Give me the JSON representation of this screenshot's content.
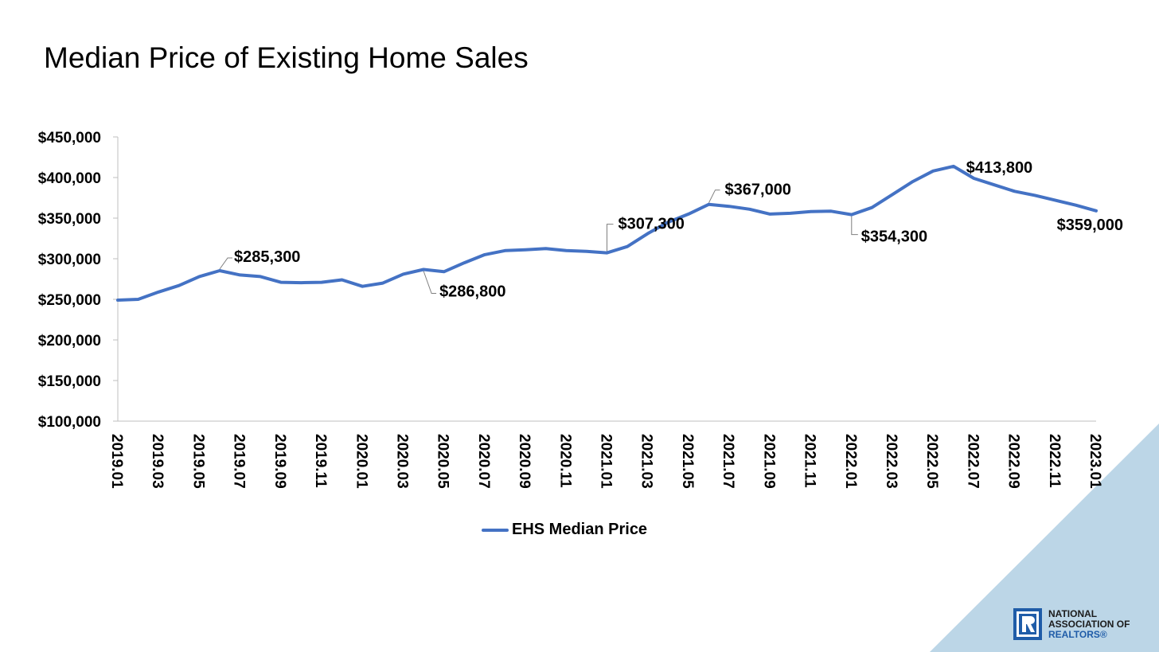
{
  "slide": {
    "title": "Median Price of Existing Home Sales",
    "colors": {
      "series": "#4472C4",
      "corner": "#BCD6E7",
      "axis": "#BFBFBF",
      "logo_blue": "#1F5CA8"
    },
    "logo": {
      "icon": "realtor-r-logo-icon",
      "line1": "NATIONAL",
      "line2": "ASSOCIATION OF",
      "line3": "REALTORS®"
    }
  },
  "chart_data": {
    "type": "line",
    "title": "Median Price of Existing Home Sales",
    "xlabel": "",
    "ylabel": "",
    "ylim": [
      100000,
      450000
    ],
    "yticks": [
      100000,
      150000,
      200000,
      250000,
      300000,
      350000,
      400000,
      450000
    ],
    "ytick_labels": [
      "$100,000",
      "$150,000",
      "$200,000",
      "$250,000",
      "$300,000",
      "$350,000",
      "$400,000",
      "$450,000"
    ],
    "categories": [
      "2019.01",
      "2019.02",
      "2019.03",
      "2019.04",
      "2019.05",
      "2019.06",
      "2019.07",
      "2019.08",
      "2019.09",
      "2019.10",
      "2019.11",
      "2019.12",
      "2020.01",
      "2020.02",
      "2020.03",
      "2020.04",
      "2020.05",
      "2020.06",
      "2020.07",
      "2020.08",
      "2020.09",
      "2020.10",
      "2020.11",
      "2020.12",
      "2021.01",
      "2021.02",
      "2021.03",
      "2021.04",
      "2021.05",
      "2021.06",
      "2021.07",
      "2021.08",
      "2021.09",
      "2021.10",
      "2021.11",
      "2021.12",
      "2022.01",
      "2022.02",
      "2022.03",
      "2022.04",
      "2022.05",
      "2022.06",
      "2022.07",
      "2022.08",
      "2022.09",
      "2022.10",
      "2022.11",
      "2022.12",
      "2023.01"
    ],
    "xtick_labels": [
      "2019.01",
      "2019.03",
      "2019.05",
      "2019.07",
      "2019.09",
      "2019.11",
      "2020.01",
      "2020.03",
      "2020.05",
      "2020.07",
      "2020.09",
      "2020.11",
      "2021.01",
      "2021.03",
      "2021.05",
      "2021.07",
      "2021.09",
      "2021.11",
      "2022.01",
      "2022.03",
      "2022.05",
      "2022.07",
      "2022.09",
      "2022.11",
      "2023.01"
    ],
    "series": [
      {
        "name": "EHS Median Price",
        "values": [
          249000,
          250000,
          259000,
          267000,
          278000,
          285300,
          280000,
          278000,
          271000,
          270500,
          271000,
          274000,
          266000,
          270000,
          281000,
          286800,
          284000,
          295000,
          305000,
          310000,
          311000,
          312500,
          310000,
          309000,
          307300,
          315000,
          331000,
          345000,
          355000,
          367000,
          364500,
          361000,
          355000,
          356000,
          358000,
          358500,
          354300,
          363000,
          379000,
          395000,
          408000,
          413800,
          399000,
          391000,
          383000,
          378000,
          372000,
          366000,
          359000
        ]
      }
    ],
    "annotations": [
      {
        "category": "2019.06",
        "value": 285300,
        "label": "$285,300"
      },
      {
        "category": "2020.04",
        "value": 286800,
        "label": "$286,800"
      },
      {
        "category": "2021.01",
        "value": 307300,
        "label": "$307,300"
      },
      {
        "category": "2021.06",
        "value": 367000,
        "label": "$367,000"
      },
      {
        "category": "2022.01",
        "value": 354300,
        "label": "$354,300"
      },
      {
        "category": "2022.06",
        "value": 413800,
        "label": "$413,800"
      },
      {
        "category": "2023.01",
        "value": 359000,
        "label": "$359,000"
      }
    ],
    "legend": {
      "position": "bottom",
      "entries": [
        "EHS Median Price"
      ]
    },
    "grid": false
  }
}
